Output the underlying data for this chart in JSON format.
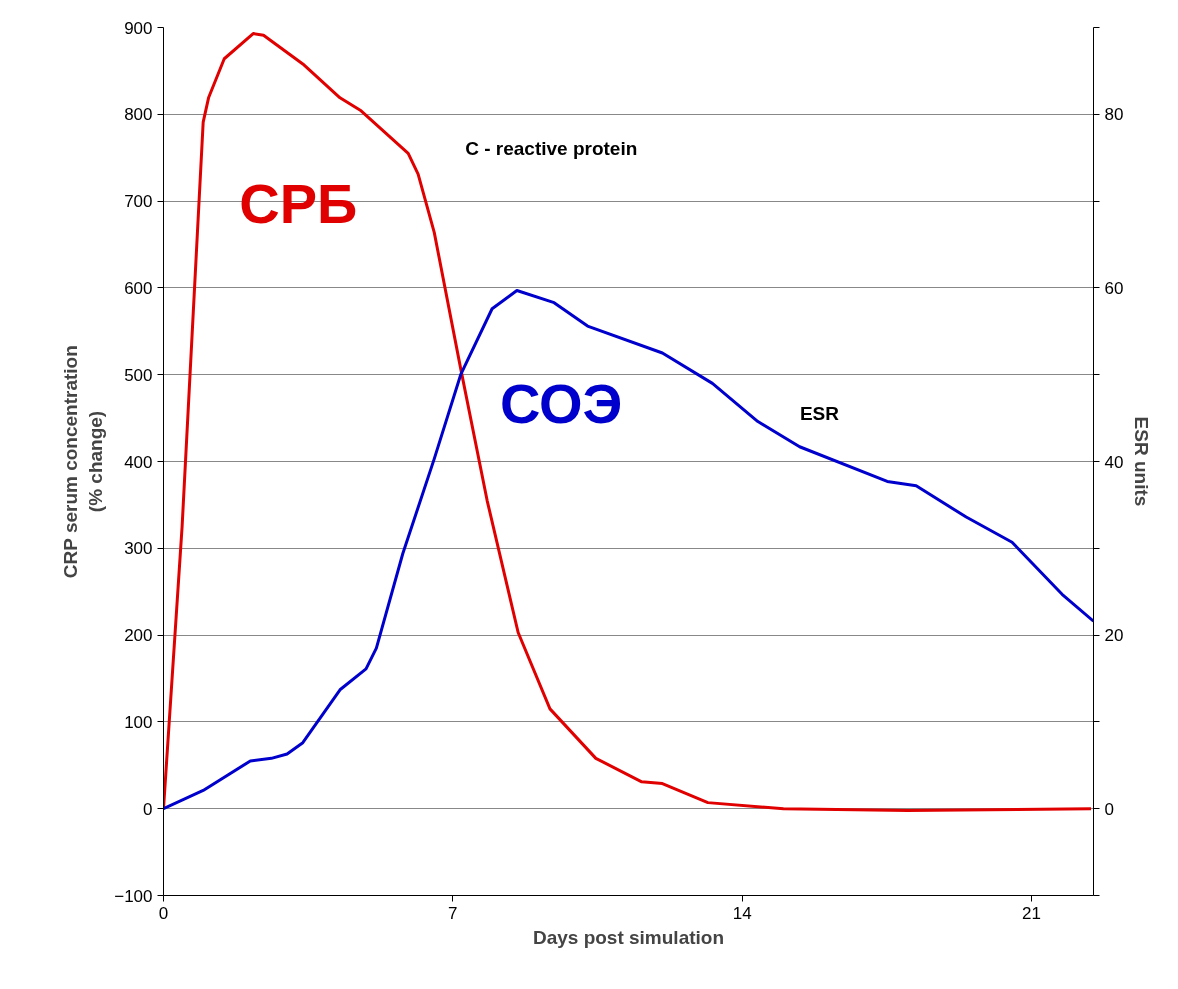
{
  "chart_data": {
    "type": "line",
    "xlabel": "Days post simulation",
    "ylabel": "CRP serum concentration\n(% change)",
    "y2label": "ESR units",
    "xlim": [
      0,
      22.5
    ],
    "xticks": [
      0,
      7,
      14,
      21
    ],
    "ylim": [
      -100,
      900
    ],
    "yticks": [
      -100,
      0,
      100,
      200,
      300,
      400,
      500,
      600,
      700,
      800,
      900
    ],
    "y2lim": [
      -10,
      90
    ],
    "y2ticks": [
      {
        "value": -10,
        "label": null
      },
      0,
      {
        "value": 10,
        "label": null
      },
      20,
      {
        "value": 30,
        "label": null
      },
      40,
      {
        "value": 50,
        "label": null
      },
      60,
      {
        "value": 70,
        "label": null
      },
      80,
      {
        "value": 90,
        "label": null
      }
    ],
    "grid": "y",
    "series": [
      {
        "name": "СРБ",
        "color": "#e00000",
        "x": [
          0,
          0.45,
          0.96,
          1.09,
          1.47,
          2.17,
          2.42,
          3.37,
          4.27,
          4.78,
          5.92,
          6.16,
          6.55,
          7.19,
          7.83,
          8.58,
          9.35,
          10.46,
          11.57,
          12.07,
          13.17,
          15.0,
          18.0,
          22.44
        ],
        "values": [
          0,
          325,
          791,
          819,
          864,
          893,
          891,
          858,
          819,
          804,
          755,
          731,
          664,
          507,
          355,
          203,
          115,
          58,
          31,
          29,
          7,
          0,
          -2,
          0
        ]
      },
      {
        "name": "СОЭ",
        "color": "#0000cc",
        "axis": "y2",
        "x": [
          0,
          0.96,
          2.1,
          2.61,
          2.99,
          3.37,
          4.27,
          4.9,
          5.15,
          5.79,
          6.55,
          7.19,
          7.95,
          8.55,
          9.45,
          10.26,
          12.07,
          13.28,
          14.38,
          15.39,
          17.51,
          18.21,
          19.42,
          20.53,
          21.74,
          22.5
        ],
        "values": [
          0,
          2.1,
          5.5,
          5.8,
          6.3,
          7.6,
          13.7,
          16.1,
          18.5,
          29.4,
          40.3,
          50.0,
          57.6,
          59.7,
          58.3,
          55.6,
          52.5,
          49.0,
          44.6,
          41.7,
          37.7,
          37.2,
          33.6,
          30.7,
          24.7,
          21.6
        ]
      }
    ],
    "annotations": [
      "C - reactive protein",
      "ESR"
    ]
  }
}
